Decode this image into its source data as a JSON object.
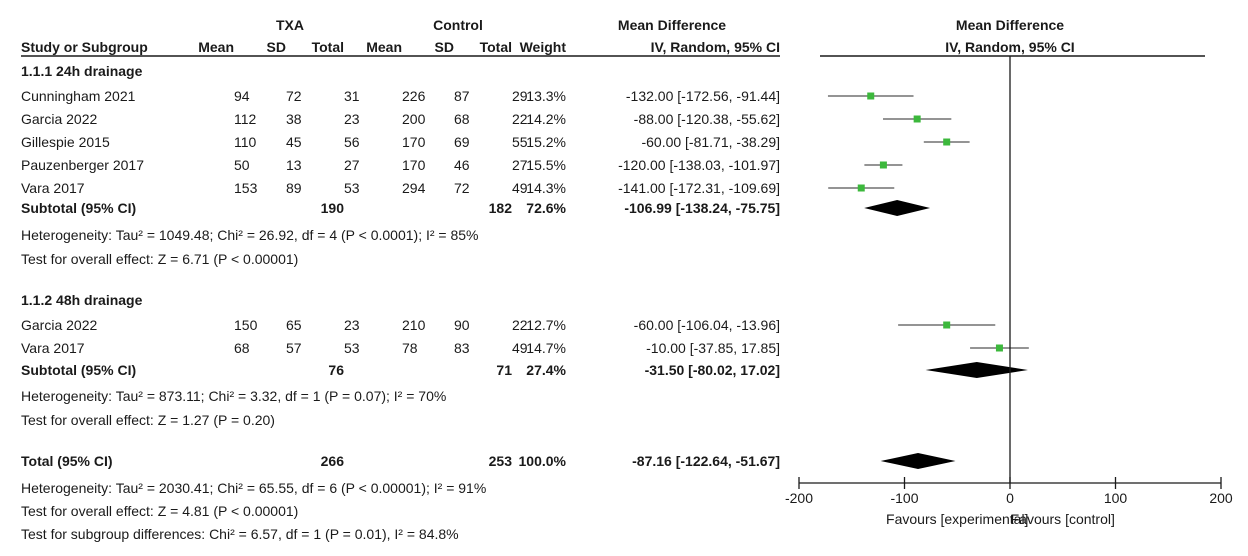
{
  "chart_data": {
    "type": "forest",
    "headers": {
      "exp_group": "TXA",
      "ctrl_group": "Control",
      "study_col": "Study or Subgroup",
      "mean": "Mean",
      "sd": "SD",
      "total": "Total",
      "weight": "Weight",
      "effect_title": "Mean Difference",
      "effect_method": "IV, Random, 95% CI",
      "plot_title": "Mean Difference",
      "plot_method": "IV, Random, 95% CI"
    },
    "subgroups": [
      {
        "title": "1.1.1 24h drainage",
        "studies": [
          {
            "name": "Cunningham 2021",
            "exp_mean": "94",
            "exp_sd": "72",
            "exp_total": "31",
            "ctl_mean": "226",
            "ctl_sd": "87",
            "ctl_total": "29",
            "weight": "13.3%",
            "ci_text": "-132.00 [-172.56, -91.44]",
            "md": -132.0,
            "lo": -172.56,
            "hi": -91.44
          },
          {
            "name": "Garcia 2022",
            "exp_mean": "112",
            "exp_sd": "38",
            "exp_total": "23",
            "ctl_mean": "200",
            "ctl_sd": "68",
            "ctl_total": "22",
            "weight": "14.2%",
            "ci_text": "-88.00 [-120.38, -55.62]",
            "md": -88.0,
            "lo": -120.38,
            "hi": -55.62
          },
          {
            "name": "Gillespie 2015",
            "exp_mean": "110",
            "exp_sd": "45",
            "exp_total": "56",
            "ctl_mean": "170",
            "ctl_sd": "69",
            "ctl_total": "55",
            "weight": "15.2%",
            "ci_text": "-60.00 [-81.71, -38.29]",
            "md": -60.0,
            "lo": -81.71,
            "hi": -38.29
          },
          {
            "name": "Pauzenberger 2017",
            "exp_mean": "50",
            "exp_sd": "13",
            "exp_total": "27",
            "ctl_mean": "170",
            "ctl_sd": "46",
            "ctl_total": "27",
            "weight": "15.5%",
            "ci_text": "-120.00 [-138.03, -101.97]",
            "md": -120.0,
            "lo": -138.03,
            "hi": -101.97
          },
          {
            "name": "Vara 2017",
            "exp_mean": "153",
            "exp_sd": "89",
            "exp_total": "53",
            "ctl_mean": "294",
            "ctl_sd": "72",
            "ctl_total": "49",
            "weight": "14.3%",
            "ci_text": "-141.00 [-172.31, -109.69]",
            "md": -141.0,
            "lo": -172.31,
            "hi": -109.69
          }
        ],
        "subtotal": {
          "label": "Subtotal (95% CI)",
          "exp_total": "190",
          "ctl_total": "182",
          "weight": "72.6%",
          "ci_text": "-106.99 [-138.24, -75.75]",
          "md": -106.99,
          "lo": -138.24,
          "hi": -75.75
        },
        "heterogeneity": "Heterogeneity: Tau² = 1049.48; Chi² = 26.92, df = 4 (P < 0.0001); I² = 85%",
        "overall_test": "Test for overall effect: Z = 6.71 (P < 0.00001)"
      },
      {
        "title": "1.1.2 48h drainage",
        "studies": [
          {
            "name": "Garcia 2022",
            "exp_mean": "150",
            "exp_sd": "65",
            "exp_total": "23",
            "ctl_mean": "210",
            "ctl_sd": "90",
            "ctl_total": "22",
            "weight": "12.7%",
            "ci_text": "-60.00 [-106.04, -13.96]",
            "md": -60.0,
            "lo": -106.04,
            "hi": -13.96
          },
          {
            "name": "Vara 2017",
            "exp_mean": "68",
            "exp_sd": "57",
            "exp_total": "53",
            "ctl_mean": "78",
            "ctl_sd": "83",
            "ctl_total": "49",
            "weight": "14.7%",
            "ci_text": "-10.00 [-37.85, 17.85]",
            "md": -10.0,
            "lo": -37.85,
            "hi": 17.85
          }
        ],
        "subtotal": {
          "label": "Subtotal (95% CI)",
          "exp_total": "76",
          "ctl_total": "71",
          "weight": "27.4%",
          "ci_text": "-31.50 [-80.02, 17.02]",
          "md": -31.5,
          "lo": -80.02,
          "hi": 17.02
        },
        "heterogeneity": "Heterogeneity: Tau² = 873.11; Chi² = 3.32, df = 1 (P = 0.07); I² = 70%",
        "overall_test": "Test for overall effect: Z = 1.27 (P = 0.20)"
      }
    ],
    "total": {
      "label": "Total (95% CI)",
      "exp_total": "266",
      "ctl_total": "253",
      "weight": "100.0%",
      "ci_text": "-87.16 [-122.64, -51.67]",
      "md": -87.16,
      "lo": -122.64,
      "hi": -51.67
    },
    "footer": [
      "Heterogeneity: Tau² = 2030.41; Chi² = 65.55, df = 6 (P < 0.00001); I² = 91%",
      "Test for overall effect: Z = 4.81 (P < 0.00001)",
      "Test for subgroup differences: Chi² = 6.57, df = 1 (P = 0.01), I² = 84.8%"
    ],
    "xlim": [
      -200,
      200
    ],
    "xticks": [
      -200,
      -100,
      0,
      100,
      200
    ],
    "favours_left": "Favours [experimental]",
    "favours_right": "Favours [control]",
    "colors": {
      "point": "#3cb83c",
      "ci_line": "#707070",
      "axis": "#1a1a1a",
      "diamond": "#000000"
    }
  }
}
